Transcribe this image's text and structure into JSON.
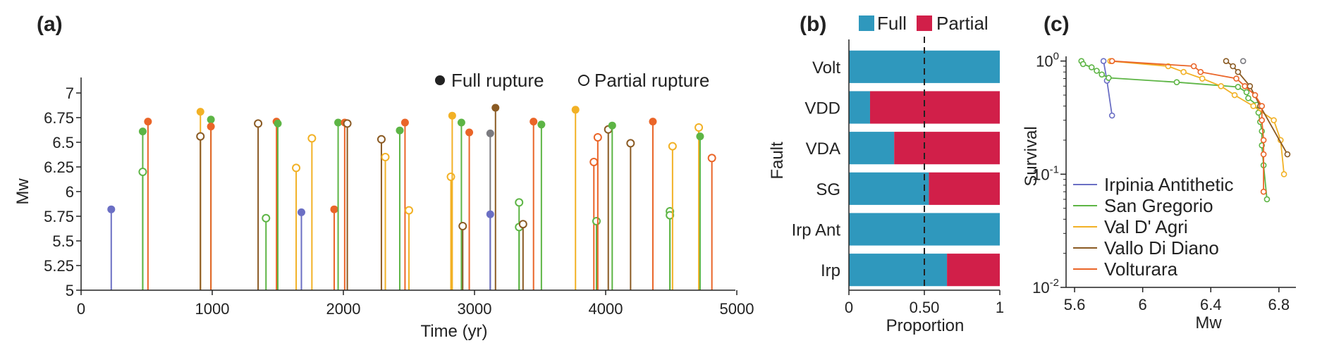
{
  "colors": {
    "irpinia_antithetic": "#6b6fc4",
    "san_gregorio": "#5db545",
    "val_d_agri": "#f2b125",
    "vallo_di_diano": "#8a5a23",
    "volturara": "#ea6528",
    "grey": "#7b7b80",
    "full": "#2f98bd",
    "partial": "#d11f49"
  },
  "panel_a": {
    "label": "(a)",
    "legend_full": "Full rupture",
    "legend_partial": "Partial rupture"
  },
  "panel_b": {
    "label": "(b)",
    "legend_full": "Full",
    "legend_partial": "Partial"
  },
  "panel_c": {
    "label": "(c)"
  },
  "chart_data": [
    {
      "type": "scatter",
      "title": "(a)",
      "xlabel": "Time (yr)",
      "ylabel": "Mw",
      "xlim": [
        0,
        5000
      ],
      "ylim": [
        5,
        7.2
      ],
      "x_ticks": [
        "0",
        "1000",
        "2000",
        "3000",
        "4000",
        "5000"
      ],
      "y_ticks": [
        "5",
        "5.25",
        "5.5",
        "5.75",
        "6",
        "6.25",
        "6.5",
        "6.75",
        "7"
      ],
      "legend": [
        "Full rupture",
        "Partial rupture"
      ],
      "events": [
        {
          "t": 230,
          "mw": 5.82,
          "fault": "irpinia_antithetic",
          "type": "full"
        },
        {
          "t": 470,
          "mw": 6.61,
          "fault": "san_gregorio",
          "type": "full"
        },
        {
          "t": 470,
          "mw": 6.2,
          "fault": "san_gregorio",
          "type": "partial"
        },
        {
          "t": 510,
          "mw": 6.71,
          "fault": "volturara",
          "type": "full"
        },
        {
          "t": 910,
          "mw": 6.81,
          "fault": "val_d_agri",
          "type": "full"
        },
        {
          "t": 910,
          "mw": 6.56,
          "fault": "vallo_di_diano",
          "type": "partial"
        },
        {
          "t": 990,
          "mw": 6.73,
          "fault": "san_gregorio",
          "type": "full"
        },
        {
          "t": 990,
          "mw": 6.66,
          "fault": "volturara",
          "type": "full"
        },
        {
          "t": 1350,
          "mw": 6.69,
          "fault": "vallo_di_diano",
          "type": "partial"
        },
        {
          "t": 1410,
          "mw": 5.73,
          "fault": "san_gregorio",
          "type": "partial"
        },
        {
          "t": 1490,
          "mw": 6.71,
          "fault": "volturara",
          "type": "full"
        },
        {
          "t": 1500,
          "mw": 6.69,
          "fault": "san_gregorio",
          "type": "full"
        },
        {
          "t": 1640,
          "mw": 6.24,
          "fault": "val_d_agri",
          "type": "partial"
        },
        {
          "t": 1680,
          "mw": 5.79,
          "fault": "irpinia_antithetic",
          "type": "full"
        },
        {
          "t": 1760,
          "mw": 6.54,
          "fault": "val_d_agri",
          "type": "partial"
        },
        {
          "t": 1930,
          "mw": 5.82,
          "fault": "volturara",
          "type": "full"
        },
        {
          "t": 1960,
          "mw": 6.7,
          "fault": "san_gregorio",
          "type": "full"
        },
        {
          "t": 2010,
          "mw": 6.7,
          "fault": "volturara",
          "type": "full"
        },
        {
          "t": 2030,
          "mw": 6.69,
          "fault": "vallo_di_diano",
          "type": "partial"
        },
        {
          "t": 2290,
          "mw": 6.53,
          "fault": "vallo_di_diano",
          "type": "partial"
        },
        {
          "t": 2320,
          "mw": 6.35,
          "fault": "val_d_agri",
          "type": "partial"
        },
        {
          "t": 2430,
          "mw": 6.62,
          "fault": "san_gregorio",
          "type": "full"
        },
        {
          "t": 2470,
          "mw": 6.7,
          "fault": "volturara",
          "type": "full"
        },
        {
          "t": 2500,
          "mw": 5.81,
          "fault": "val_d_agri",
          "type": "partial"
        },
        {
          "t": 2820,
          "mw": 6.15,
          "fault": "val_d_agri",
          "type": "partial"
        },
        {
          "t": 2830,
          "mw": 6.77,
          "fault": "val_d_agri",
          "type": "full"
        },
        {
          "t": 2900,
          "mw": 6.7,
          "fault": "san_gregorio",
          "type": "full"
        },
        {
          "t": 2910,
          "mw": 5.65,
          "fault": "vallo_di_diano",
          "type": "partial"
        },
        {
          "t": 2960,
          "mw": 6.6,
          "fault": "volturara",
          "type": "full"
        },
        {
          "t": 3120,
          "mw": 6.59,
          "fault": "grey",
          "type": "full"
        },
        {
          "t": 3120,
          "mw": 5.77,
          "fault": "irpinia_antithetic",
          "type": "full"
        },
        {
          "t": 3160,
          "mw": 6.85,
          "fault": "vallo_di_diano",
          "type": "full"
        },
        {
          "t": 3340,
          "mw": 5.89,
          "fault": "san_gregorio",
          "type": "partial"
        },
        {
          "t": 3340,
          "mw": 5.64,
          "fault": "san_gregorio",
          "type": "partial"
        },
        {
          "t": 3370,
          "mw": 5.67,
          "fault": "vallo_di_diano",
          "type": "partial"
        },
        {
          "t": 3450,
          "mw": 6.71,
          "fault": "volturara",
          "type": "full"
        },
        {
          "t": 3510,
          "mw": 6.68,
          "fault": "san_gregorio",
          "type": "full"
        },
        {
          "t": 3770,
          "mw": 6.83,
          "fault": "val_d_agri",
          "type": "full"
        },
        {
          "t": 3910,
          "mw": 6.3,
          "fault": "volturara",
          "type": "partial"
        },
        {
          "t": 3930,
          "mw": 5.7,
          "fault": "san_gregorio",
          "type": "partial"
        },
        {
          "t": 3940,
          "mw": 6.55,
          "fault": "volturara",
          "type": "partial"
        },
        {
          "t": 4020,
          "mw": 6.63,
          "fault": "vallo_di_diano",
          "type": "partial"
        },
        {
          "t": 4050,
          "mw": 6.67,
          "fault": "san_gregorio",
          "type": "full"
        },
        {
          "t": 4190,
          "mw": 6.49,
          "fault": "vallo_di_diano",
          "type": "partial"
        },
        {
          "t": 4360,
          "mw": 6.71,
          "fault": "volturara",
          "type": "full"
        },
        {
          "t": 4490,
          "mw": 5.8,
          "fault": "san_gregorio",
          "type": "partial"
        },
        {
          "t": 4490,
          "mw": 5.76,
          "fault": "san_gregorio",
          "type": "partial"
        },
        {
          "t": 4510,
          "mw": 6.46,
          "fault": "val_d_agri",
          "type": "partial"
        },
        {
          "t": 4710,
          "mw": 6.65,
          "fault": "val_d_agri",
          "type": "partial"
        },
        {
          "t": 4720,
          "mw": 6.56,
          "fault": "san_gregorio",
          "type": "full"
        },
        {
          "t": 4810,
          "mw": 6.34,
          "fault": "volturara",
          "type": "partial"
        }
      ]
    },
    {
      "type": "bar",
      "title": "(b)",
      "xlabel": "Proportion",
      "ylabel": "Fault",
      "xlim": [
        0,
        1
      ],
      "x_ticks": [
        "0",
        "0.50",
        "1"
      ],
      "reference_line": 0.5,
      "categories": [
        "Volt",
        "VDD",
        "VDA",
        "SG",
        "Irp Ant",
        "Irp"
      ],
      "series": [
        {
          "name": "Full",
          "values": [
            1.0,
            0.14,
            0.3,
            0.53,
            1.0,
            0.65
          ]
        },
        {
          "name": "Partial",
          "values": [
            0.0,
            0.86,
            0.7,
            0.47,
            0.0,
            0.35
          ]
        }
      ]
    },
    {
      "type": "line",
      "title": "(c)",
      "xlabel": "Mw",
      "ylabel": "Survival",
      "xlim": [
        5.55,
        6.9
      ],
      "ylim": [
        0.01,
        1.1
      ],
      "y_scale": "log",
      "x_ticks": [
        "5.6",
        "6",
        "6.4",
        "6.8"
      ],
      "y_ticks": [
        "10^-2",
        "10^-1",
        "10^0"
      ],
      "legend_position": "bottom-left",
      "series": [
        {
          "name": "Irpinia Antithetic",
          "key": "irpinia_antithetic",
          "x": [
            5.77,
            5.79,
            5.82
          ],
          "y": [
            1.0,
            0.67,
            0.33
          ]
        },
        {
          "name": "San Gregorio",
          "key": "san_gregorio",
          "x": [
            5.64,
            5.65,
            5.7,
            5.73,
            5.76,
            5.8,
            6.2,
            6.56,
            6.61,
            6.62,
            6.67,
            6.68,
            6.69,
            6.7,
            6.7,
            6.71,
            6.73
          ],
          "y": [
            1.0,
            0.94,
            0.88,
            0.82,
            0.76,
            0.71,
            0.65,
            0.59,
            0.53,
            0.47,
            0.41,
            0.35,
            0.29,
            0.24,
            0.18,
            0.12,
            0.06
          ]
        },
        {
          "name": "Val D' Agri",
          "key": "val_d_agri",
          "x": [
            5.81,
            6.15,
            6.24,
            6.35,
            6.46,
            6.54,
            6.65,
            6.77,
            6.81,
            6.83
          ],
          "y": [
            1.0,
            0.9,
            0.8,
            0.7,
            0.6,
            0.5,
            0.4,
            0.3,
            0.2,
            0.1
          ]
        },
        {
          "name": "Vallo Di Diano",
          "key": "vallo_di_diano",
          "x": [
            6.49,
            6.53,
            6.56,
            6.63,
            6.69,
            6.85
          ],
          "y": [
            1.0,
            0.9,
            0.8,
            0.6,
            0.4,
            0.15
          ]
        },
        {
          "name": "Volturara",
          "key": "volturara",
          "x": [
            5.82,
            6.3,
            6.34,
            6.55,
            6.6,
            6.66,
            6.7,
            6.7,
            6.71,
            6.71,
            6.71
          ],
          "y": [
            1.0,
            0.9,
            0.8,
            0.7,
            0.6,
            0.5,
            0.4,
            0.3,
            0.2,
            0.15,
            0.07
          ]
        },
        {
          "name": "",
          "key": "grey",
          "x": [
            6.59
          ],
          "y": [
            1.0
          ]
        }
      ]
    }
  ]
}
